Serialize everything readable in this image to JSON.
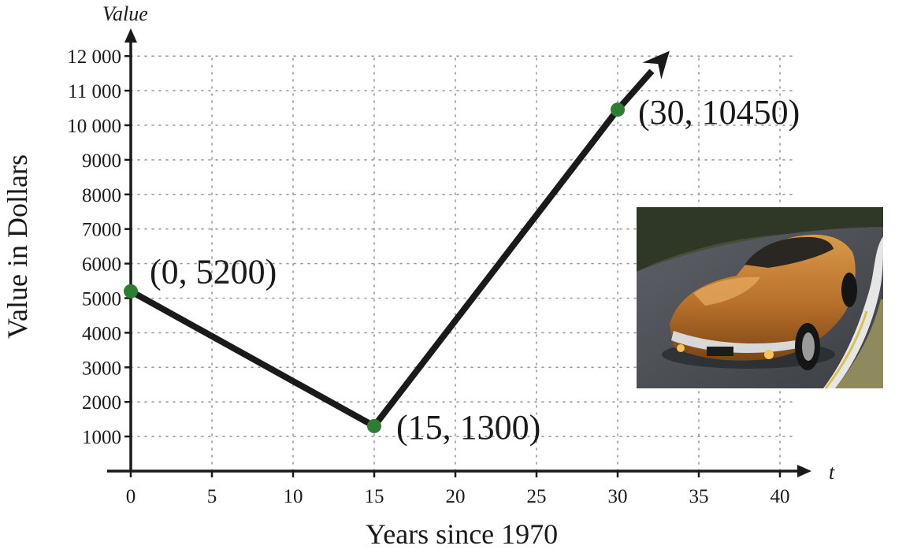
{
  "chart_data": {
    "type": "line",
    "xlabel": "Years since 1970",
    "ylabel": "Value in Dollars",
    "x_axis_var": "t",
    "y_axis_var": "Value",
    "xlim": [
      0,
      41
    ],
    "ylim": [
      0,
      12500
    ],
    "x_ticks": [
      0,
      5,
      10,
      15,
      20,
      25,
      30,
      35,
      40
    ],
    "x_tick_labels": [
      "0",
      "5",
      "10",
      "15",
      "20",
      "25",
      "30",
      "35",
      "40"
    ],
    "y_ticks": [
      1000,
      2000,
      3000,
      4000,
      5000,
      6000,
      7000,
      8000,
      9000,
      10000,
      11000,
      12000
    ],
    "y_tick_labels": [
      "1000",
      "2000",
      "3000",
      "4000",
      "5000",
      "6000",
      "7000",
      "8000",
      "9000",
      "10 000",
      "11 000",
      "12 000"
    ],
    "grid": true,
    "series": [
      {
        "points": [
          {
            "x": 0,
            "y": 5200,
            "label": "(0, 5200)"
          },
          {
            "x": 15,
            "y": 1300,
            "label": "(15, 1300)"
          },
          {
            "x": 30,
            "y": 10450,
            "label": "(30, 10450)"
          }
        ],
        "arrow_end": {
          "x": 33.2,
          "y": 12150
        },
        "line_color": "#1a1a1a",
        "point_color": "#2e7d32"
      }
    ],
    "inset_image": "photo of orange sports car on road"
  }
}
